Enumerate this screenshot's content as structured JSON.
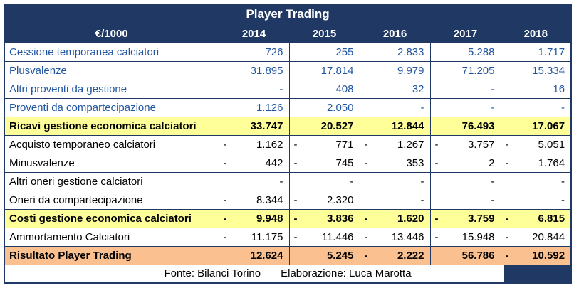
{
  "title": "Player Trading",
  "colors": {
    "navy": "#1F3864",
    "blue-text": "#2155A0",
    "yellow": "#FFFF99",
    "orange": "#FAC090",
    "border": "#1F3864",
    "text": "#000000",
    "bg": "#FFFFFF"
  },
  "header": {
    "label_col": "€/1000",
    "years": [
      "2014",
      "2015",
      "2016",
      "2017",
      "2018"
    ]
  },
  "rows": [
    {
      "label": "Cessione temporanea calciatori",
      "cells": [
        {
          "s": "",
          "v": "726"
        },
        {
          "s": "",
          "v": "255"
        },
        {
          "s": "",
          "v": "2.833"
        },
        {
          "s": "",
          "v": "5.288"
        },
        {
          "s": "",
          "v": "1.717"
        }
      ]
    },
    {
      "label": "Plusvalenze",
      "cells": [
        {
          "s": "",
          "v": "31.895"
        },
        {
          "s": "",
          "v": "17.814"
        },
        {
          "s": "",
          "v": "9.979"
        },
        {
          "s": "",
          "v": "71.205"
        },
        {
          "s": "",
          "v": "15.334"
        }
      ]
    },
    {
      "label": "Altri proventi da gestione",
      "cells": [
        {
          "s": "",
          "v": "-"
        },
        {
          "s": "",
          "v": "408"
        },
        {
          "s": "",
          "v": "32"
        },
        {
          "s": "",
          "v": "-"
        },
        {
          "s": "",
          "v": "16"
        }
      ]
    },
    {
      "label": "Proventi da compartecipazione",
      "cells": [
        {
          "s": "",
          "v": "1.126"
        },
        {
          "s": "",
          "v": "2.050"
        },
        {
          "s": "",
          "v": "-"
        },
        {
          "s": "",
          "v": "-"
        },
        {
          "s": "",
          "v": "-"
        }
      ]
    },
    {
      "label": "Ricavi gestione economica calciatori",
      "cells": [
        {
          "s": "",
          "v": "33.747"
        },
        {
          "s": "",
          "v": "20.527"
        },
        {
          "s": "",
          "v": "12.844"
        },
        {
          "s": "",
          "v": "76.493"
        },
        {
          "s": "",
          "v": "17.067"
        }
      ]
    },
    {
      "label": "Acquisto temporaneo calciatori",
      "cells": [
        {
          "s": "-",
          "v": "1.162"
        },
        {
          "s": "-",
          "v": "771"
        },
        {
          "s": "-",
          "v": "1.267"
        },
        {
          "s": "-",
          "v": "3.757"
        },
        {
          "s": "-",
          "v": "5.051"
        }
      ]
    },
    {
      "label": "Minusvalenze",
      "cells": [
        {
          "s": "-",
          "v": "442"
        },
        {
          "s": "-",
          "v": "745"
        },
        {
          "s": "-",
          "v": "353"
        },
        {
          "s": "-",
          "v": "2"
        },
        {
          "s": "-",
          "v": "1.764"
        }
      ]
    },
    {
      "label": "Altri oneri gestione calciatori",
      "cells": [
        {
          "s": "",
          "v": "-"
        },
        {
          "s": "",
          "v": "-"
        },
        {
          "s": "",
          "v": "-"
        },
        {
          "s": "",
          "v": "-"
        },
        {
          "s": "",
          "v": "-"
        }
      ]
    },
    {
      "label": "Oneri da compartecipazione",
      "cells": [
        {
          "s": "-",
          "v": "8.344"
        },
        {
          "s": "-",
          "v": "2.320"
        },
        {
          "s": "",
          "v": "-"
        },
        {
          "s": "",
          "v": "-"
        },
        {
          "s": "",
          "v": "-"
        }
      ]
    },
    {
      "label": "Costi gestione economica calciatori",
      "cells": [
        {
          "s": "-",
          "v": "9.948"
        },
        {
          "s": "-",
          "v": "3.836"
        },
        {
          "s": "-",
          "v": "1.620"
        },
        {
          "s": "-",
          "v": "3.759"
        },
        {
          "s": "-",
          "v": "6.815"
        }
      ]
    },
    {
      "label": "Ammortamento Calciatori",
      "cells": [
        {
          "s": "-",
          "v": "11.175"
        },
        {
          "s": "-",
          "v": "11.446"
        },
        {
          "s": "-",
          "v": "13.446"
        },
        {
          "s": "-",
          "v": "15.948"
        },
        {
          "s": "-",
          "v": "20.844"
        }
      ]
    },
    {
      "label": "Risultato Player Trading",
      "cells": [
        {
          "s": "",
          "v": "12.624"
        },
        {
          "s": "",
          "v": "5.245"
        },
        {
          "s": "-",
          "v": "2.222"
        },
        {
          "s": "",
          "v": "56.786"
        },
        {
          "s": "-",
          "v": "10.592"
        }
      ]
    }
  ],
  "footer": {
    "fonte": "Fonte: Bilanci Torino",
    "elaborazione": "Elaborazione: Luca Marotta"
  },
  "chart_data": {
    "type": "table",
    "title": "Player Trading",
    "unit": "€/1000",
    "columns": [
      "€/1000",
      "2014",
      "2015",
      "2016",
      "2017",
      "2018"
    ],
    "rows": [
      {
        "label": "Cessione temporanea calciatori",
        "values": [
          726,
          255,
          2833,
          5288,
          1717
        ]
      },
      {
        "label": "Plusvalenze",
        "values": [
          31895,
          17814,
          9979,
          71205,
          15334
        ]
      },
      {
        "label": "Altri proventi da gestione",
        "values": [
          null,
          408,
          32,
          null,
          16
        ]
      },
      {
        "label": "Proventi da compartecipazione",
        "values": [
          1126,
          2050,
          null,
          null,
          null
        ]
      },
      {
        "label": "Ricavi gestione economica calciatori",
        "values": [
          33747,
          20527,
          12844,
          76493,
          17067
        ]
      },
      {
        "label": "Acquisto temporaneo calciatori",
        "values": [
          -1162,
          -771,
          -1267,
          -3757,
          -5051
        ]
      },
      {
        "label": "Minusvalenze",
        "values": [
          -442,
          -745,
          -353,
          -2,
          -1764
        ]
      },
      {
        "label": "Altri oneri gestione calciatori",
        "values": [
          null,
          null,
          null,
          null,
          null
        ]
      },
      {
        "label": "Oneri da compartecipazione",
        "values": [
          -8344,
          -2320,
          null,
          null,
          null
        ]
      },
      {
        "label": "Costi gestione economica calciatori",
        "values": [
          -9948,
          -3836,
          -1620,
          -3759,
          -6815
        ]
      },
      {
        "label": "Ammortamento Calciatori",
        "values": [
          -11175,
          -11446,
          -13446,
          -15948,
          -20844
        ]
      },
      {
        "label": "Risultato Player Trading",
        "values": [
          12624,
          5245,
          -2222,
          56786,
          -10592
        ]
      }
    ]
  }
}
